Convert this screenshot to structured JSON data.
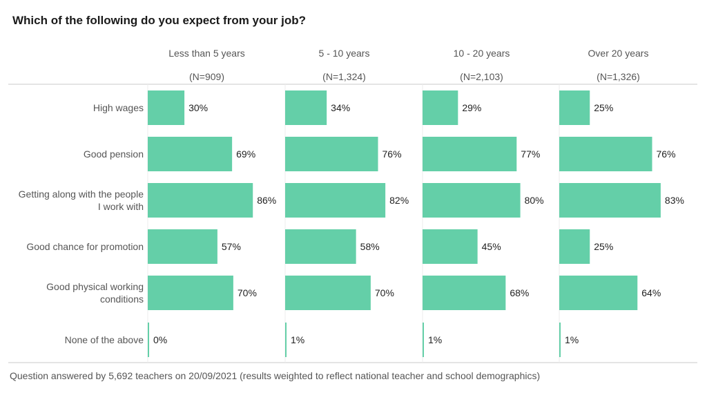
{
  "chart_data": {
    "type": "bar",
    "orientation": "horizontal",
    "layout": "small-multiples",
    "title": "Which of the following do you expect from your job?",
    "categories": [
      "High wages",
      "Good pension",
      "Getting along with the people I work with",
      "Good chance for promotion",
      "Good physical working conditions",
      "None of the above"
    ],
    "category_lines": [
      [
        "High wages"
      ],
      [
        "Good pension"
      ],
      [
        "Getting along with the people",
        "I work with"
      ],
      [
        "Good chance for promotion"
      ],
      [
        "Good physical working",
        "conditions"
      ],
      [
        "None of the above"
      ]
    ],
    "series": [
      {
        "name": "Less than 5 years",
        "n_label": "(N=909)",
        "values": [
          30,
          69,
          86,
          57,
          70,
          0
        ]
      },
      {
        "name": "5 - 10 years",
        "n_label": "(N=1,324)",
        "values": [
          34,
          76,
          82,
          58,
          70,
          1
        ]
      },
      {
        "name": "10 - 20 years",
        "n_label": "(N=2,103)",
        "values": [
          29,
          77,
          80,
          45,
          68,
          1
        ]
      },
      {
        "name": "Over 20 years",
        "n_label": "(N=1,326)",
        "values": [
          25,
          76,
          83,
          25,
          64,
          1
        ]
      }
    ],
    "value_suffix": "%",
    "xlim": [
      0,
      100
    ],
    "xlabel": "",
    "ylabel": "",
    "grid": false,
    "legend": "none",
    "bar_color": "#64cfa8",
    "footnote": "Question answered by 5,692 teachers on 20/09/2021 (results weighted to reflect national teacher and school demographics)"
  }
}
